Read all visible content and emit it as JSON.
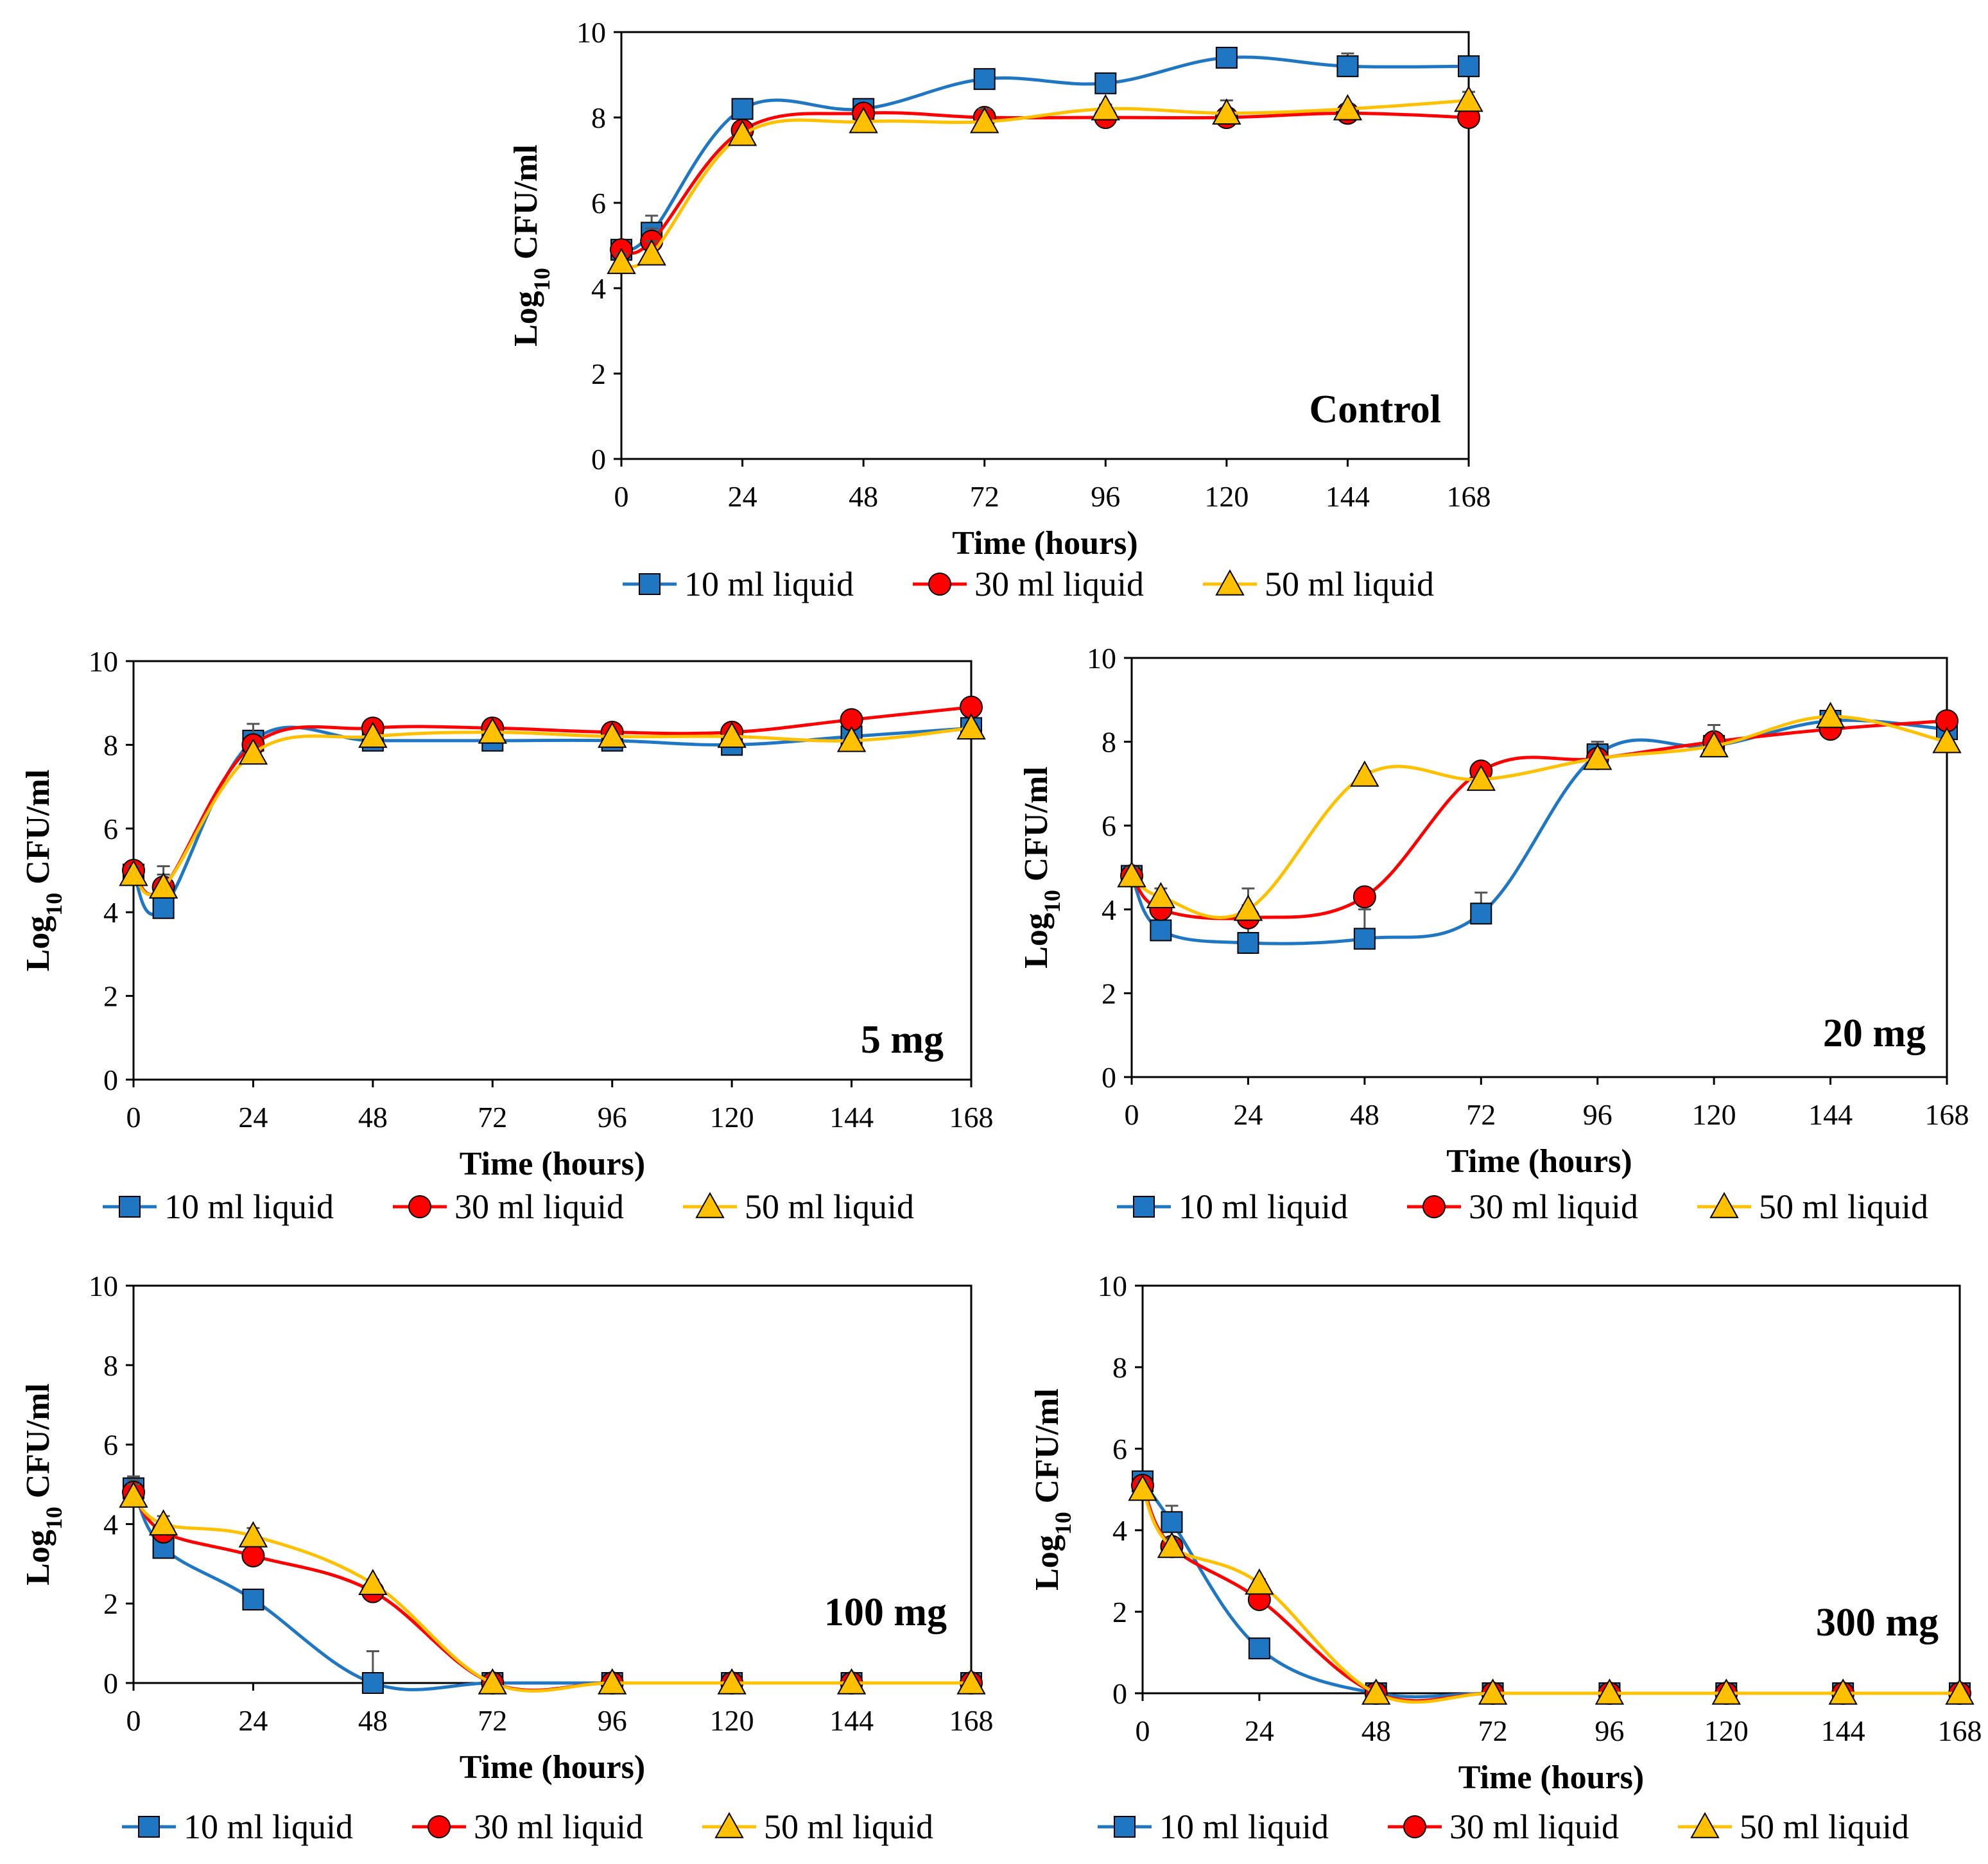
{
  "figure": {
    "legend_entries": [
      "10 ml liquid",
      "30 ml liquid",
      "50 ml liquid"
    ]
  },
  "colors": {
    "series_10ml": "#1f77c4",
    "series_30ml": "#ff0000",
    "series_50ml": "#ffc000",
    "axis": "#000000",
    "errorbar": "#555555"
  },
  "chart_data": [
    {
      "type": "line",
      "title": "Control",
      "xlabel": "Time (hours)",
      "ylabel": "Log10 CFU/ml",
      "xticks": [
        "0",
        "24",
        "48",
        "72",
        "96",
        "120",
        "144",
        "168"
      ],
      "yticks": [
        "0",
        "2",
        "4",
        "6",
        "8",
        "10"
      ],
      "xlim": [
        0,
        168
      ],
      "ylim": [
        0,
        10
      ],
      "x": [
        0,
        6,
        24,
        48,
        72,
        96,
        120,
        144,
        168
      ],
      "series": [
        {
          "name": "10 ml liquid",
          "marker": "square",
          "values": [
            4.9,
            5.3,
            8.2,
            8.2,
            8.9,
            8.8,
            9.4,
            9.2,
            9.2
          ],
          "errors": [
            0.2,
            0.4,
            0.1,
            0.1,
            0.1,
            0.1,
            0.1,
            0.3,
            0.1
          ]
        },
        {
          "name": "30 ml liquid",
          "marker": "circle",
          "values": [
            4.9,
            5.1,
            7.7,
            8.1,
            8.0,
            8.0,
            8.0,
            8.1,
            8.0
          ],
          "errors": [
            0.2,
            0.3,
            0.1,
            0.1,
            0.1,
            0.3,
            0.2,
            0.1,
            0.1
          ]
        },
        {
          "name": "50 ml liquid",
          "marker": "triangle",
          "values": [
            4.6,
            4.8,
            7.6,
            7.9,
            7.9,
            8.2,
            8.1,
            8.2,
            8.4
          ],
          "errors": [
            0.2,
            0.3,
            0.1,
            0.1,
            0.3,
            0.1,
            0.3,
            0.1,
            0.2
          ]
        }
      ]
    },
    {
      "type": "line",
      "title": "5 mg",
      "xlabel": "Time (hours)",
      "ylabel": "Log10 CFU/ml",
      "xticks": [
        "0",
        "24",
        "48",
        "72",
        "96",
        "120",
        "144",
        "168"
      ],
      "yticks": [
        "0",
        "2",
        "4",
        "6",
        "8",
        "10"
      ],
      "xlim": [
        0,
        168
      ],
      "ylim": [
        0,
        10
      ],
      "x": [
        0,
        6,
        24,
        48,
        72,
        96,
        120,
        144,
        168
      ],
      "series": [
        {
          "name": "10 ml liquid",
          "marker": "square",
          "values": [
            4.9,
            4.1,
            8.1,
            8.1,
            8.1,
            8.1,
            8.0,
            8.2,
            8.4
          ],
          "errors": [
            0.2,
            0.3,
            0.2,
            0.1,
            0.1,
            0.1,
            0.1,
            0.1,
            0.1
          ]
        },
        {
          "name": "30 ml liquid",
          "marker": "circle",
          "values": [
            5.0,
            4.6,
            8.0,
            8.4,
            8.4,
            8.3,
            8.3,
            8.6,
            8.9
          ],
          "errors": [
            0.2,
            0.5,
            0.5,
            0.1,
            0.1,
            0.1,
            0.1,
            0.1,
            0.1
          ]
        },
        {
          "name": "50 ml liquid",
          "marker": "triangle",
          "values": [
            4.9,
            4.6,
            7.8,
            8.2,
            8.3,
            8.2,
            8.2,
            8.1,
            8.4
          ],
          "errors": [
            0.2,
            0.3,
            0.2,
            0.1,
            0.1,
            0.1,
            0.1,
            0.1,
            0.1
          ]
        }
      ]
    },
    {
      "type": "line",
      "title": "20 mg",
      "xlabel": "Time (hours)",
      "ylabel": "Log10 CFU/ml",
      "xticks": [
        "0",
        "24",
        "48",
        "72",
        "96",
        "120",
        "144",
        "168"
      ],
      "yticks": [
        "0",
        "2",
        "4",
        "6",
        "8",
        "10"
      ],
      "xlim": [
        0,
        168
      ],
      "ylim": [
        0,
        10
      ],
      "x": [
        0,
        6,
        24,
        48,
        72,
        96,
        120,
        144,
        168
      ],
      "series": [
        {
          "name": "10 ml liquid",
          "marker": "square",
          "values": [
            4.8,
            3.5,
            3.2,
            3.3,
            3.9,
            7.7,
            7.9,
            8.5,
            8.3
          ],
          "errors": [
            0.2,
            0.6,
            0.5,
            0.7,
            0.5,
            0.3,
            0.3,
            0.1,
            0.1
          ]
        },
        {
          "name": "30 ml liquid",
          "marker": "circle",
          "values": [
            4.8,
            4.0,
            3.8,
            4.3,
            7.3,
            7.6,
            8.0,
            8.3,
            8.5
          ],
          "errors": [
            0.2,
            0.3,
            0.3,
            0.2,
            0.2,
            0.2,
            0.2,
            0.1,
            0.1
          ]
        },
        {
          "name": "50 ml liquid",
          "marker": "triangle",
          "values": [
            4.8,
            4.3,
            4.0,
            7.2,
            7.1,
            7.6,
            7.9,
            8.6,
            8.0
          ],
          "errors": [
            0.2,
            0.2,
            0.5,
            0.1,
            0.1,
            0.1,
            0.5,
            0.1,
            0.1
          ]
        }
      ]
    },
    {
      "type": "line",
      "title": "100 mg",
      "xlabel": "Time (hours)",
      "ylabel": "Log10 CFU/ml",
      "xticks": [
        "0",
        "24",
        "48",
        "72",
        "96",
        "120",
        "144",
        "168"
      ],
      "yticks": [
        "0",
        "2",
        "4",
        "6",
        "8",
        "10"
      ],
      "xlim": [
        0,
        168
      ],
      "ylim": [
        0,
        10
      ],
      "x": [
        0,
        6,
        24,
        48,
        72,
        96,
        120,
        144,
        168
      ],
      "series": [
        {
          "name": "10 ml liquid",
          "marker": "square",
          "values": [
            4.9,
            3.4,
            2.1,
            0.0,
            0.0,
            0.0,
            0.0,
            0.0,
            0.0
          ],
          "errors": [
            0.3,
            0.2,
            0.1,
            0.8,
            0,
            0,
            0,
            0,
            0
          ]
        },
        {
          "name": "30 ml liquid",
          "marker": "circle",
          "values": [
            4.8,
            3.8,
            3.2,
            2.3,
            0.0,
            0.0,
            0.0,
            0.0,
            0.0
          ],
          "errors": [
            0.3,
            0.2,
            0.4,
            0.1,
            0,
            0,
            0,
            0,
            0
          ]
        },
        {
          "name": "50 ml liquid",
          "marker": "triangle",
          "values": [
            4.7,
            4.0,
            3.7,
            2.5,
            0.0,
            0.0,
            0.0,
            0.0,
            0.0
          ],
          "errors": [
            0.3,
            0.2,
            0.2,
            0.1,
            0,
            0,
            0,
            0,
            0
          ]
        }
      ]
    },
    {
      "type": "line",
      "title": "300 mg",
      "xlabel": "Time (hours)",
      "ylabel": "Log10 CFU/ml",
      "xticks": [
        "0",
        "24",
        "48",
        "72",
        "96",
        "120",
        "144",
        "168"
      ],
      "yticks": [
        "0",
        "2",
        "4",
        "6",
        "8",
        "10"
      ],
      "xlim": [
        0,
        168
      ],
      "ylim": [
        0,
        10
      ],
      "x": [
        0,
        6,
        24,
        48,
        72,
        96,
        120,
        144,
        168
      ],
      "series": [
        {
          "name": "10 ml liquid",
          "marker": "square",
          "values": [
            5.2,
            4.2,
            1.1,
            0.0,
            0.0,
            0.0,
            0.0,
            0.0,
            0.0
          ],
          "errors": [
            0.2,
            0.4,
            0.1,
            0,
            0,
            0,
            0,
            0,
            0
          ]
        },
        {
          "name": "30 ml liquid",
          "marker": "circle",
          "values": [
            5.1,
            3.6,
            2.3,
            0.0,
            0.0,
            0.0,
            0.0,
            0.0,
            0.0
          ],
          "errors": [
            0.2,
            0.2,
            0.1,
            0,
            0,
            0,
            0,
            0,
            0
          ]
        },
        {
          "name": "50 ml liquid",
          "marker": "triangle",
          "values": [
            5.0,
            3.6,
            2.7,
            0.0,
            0.0,
            0.0,
            0.0,
            0.0,
            0.0
          ],
          "errors": [
            0.2,
            0.2,
            0.1,
            0,
            0,
            0,
            0,
            0,
            0
          ]
        }
      ]
    }
  ]
}
